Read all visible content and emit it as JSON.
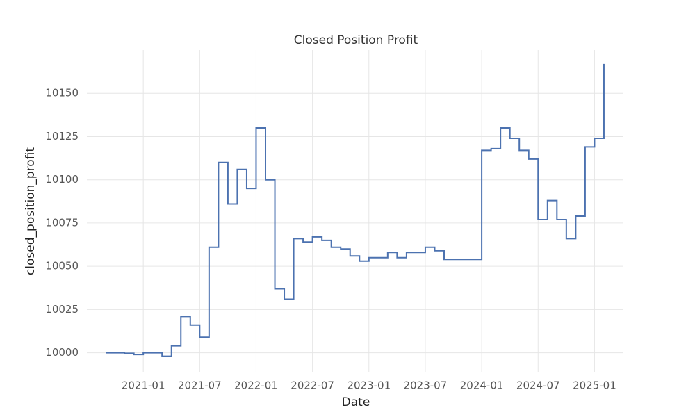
{
  "chart_data": {
    "type": "step-line",
    "title": "Closed Position Profit",
    "x_label": "Date",
    "y_label": "closed_position_profit",
    "x": [
      "2020-09",
      "2020-10",
      "2020-11",
      "2020-12",
      "2021-01",
      "2021-02",
      "2021-03",
      "2021-04",
      "2021-05",
      "2021-06",
      "2021-07",
      "2021-08",
      "2021-09",
      "2021-10",
      "2021-11",
      "2021-12",
      "2022-01",
      "2022-02",
      "2022-03",
      "2022-04",
      "2022-05",
      "2022-06",
      "2022-07",
      "2022-08",
      "2022-09",
      "2022-10",
      "2022-11",
      "2022-12",
      "2023-01",
      "2023-02",
      "2023-03",
      "2023-04",
      "2023-05",
      "2023-06",
      "2023-07",
      "2023-08",
      "2023-09",
      "2023-10",
      "2023-11",
      "2023-12",
      "2024-01",
      "2024-02",
      "2024-03",
      "2024-04",
      "2024-05",
      "2024-06",
      "2024-07",
      "2024-08",
      "2024-09",
      "2024-10",
      "2024-11",
      "2024-12",
      "2025-01",
      "2025-02"
    ],
    "series": [
      {
        "name": "closed_position_profit",
        "color": "#4c72b0",
        "values": [
          10000,
          10000,
          9999.7,
          9999,
          10000,
          10000,
          9998,
          10004,
          10021,
          10016,
          10009,
          10061,
          10110,
          10086,
          10106,
          10095,
          10130,
          10100,
          10037,
          10031,
          10066,
          10064,
          10067,
          10065,
          10061,
          10060,
          10056,
          10053,
          10055,
          10055,
          10058,
          10055,
          10058,
          10058,
          10061,
          10059,
          10054,
          10054,
          10054,
          10054,
          10117,
          10118,
          10130,
          10124,
          10117,
          10112,
          10077,
          10088,
          10077,
          10066,
          10079,
          10119,
          10124,
          10167
        ]
      }
    ],
    "xlim": [
      "2020-07",
      "2025-04"
    ],
    "xticks": [
      "2021-01",
      "2021-07",
      "2022-01",
      "2022-07",
      "2023-01",
      "2023-07",
      "2024-01",
      "2024-07",
      "2025-01"
    ],
    "ylim": [
      9989,
      10175
    ],
    "yticks": [
      10000,
      10025,
      10050,
      10075,
      10100,
      10125,
      10150
    ],
    "grid": true
  }
}
